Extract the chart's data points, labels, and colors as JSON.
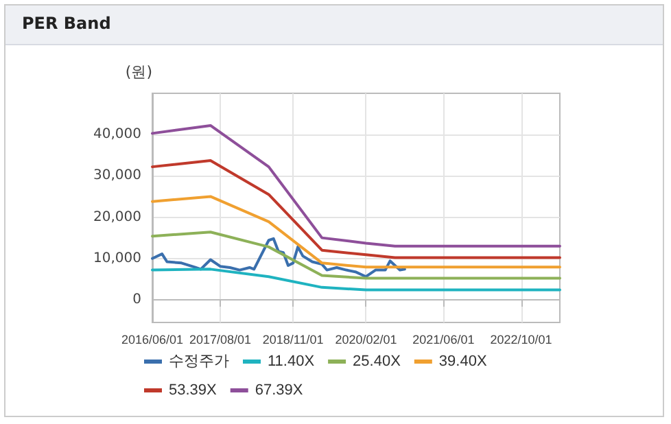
{
  "chart_data": {
    "type": "line",
    "title": "PER Band",
    "ylabel": "(원)",
    "xlim": [
      "2016-06-01",
      "2023-06-01"
    ],
    "xticks": [
      {
        "value": "2016-06-01",
        "label": "2016/06/01"
      },
      {
        "value": "2017-08-01",
        "label": "2017/08/01"
      },
      {
        "value": "2018-11-01",
        "label": "2018/11/01"
      },
      {
        "value": "2020-02-01",
        "label": "2020/02/01"
      },
      {
        "value": "2021-06-01",
        "label": "2021/06/01"
      },
      {
        "value": "2022-10-01",
        "label": "2022/10/01"
      }
    ],
    "ylim": [
      -5500,
      50000
    ],
    "yticks": [
      0,
      {
        "value": 10000,
        "label": "10,000"
      },
      {
        "value": 20000,
        "label": "20,000"
      },
      {
        "value": 30000,
        "label": "30,000"
      },
      {
        "value": 40000,
        "label": "40,000"
      }
    ],
    "grid": true,
    "legend": "bottom",
    "marker": "none",
    "line_style": "solid",
    "series": [
      {
        "name": "수정주가",
        "color": "#3a6fad",
        "x": [
          "2016-06-01",
          "2016-08-01",
          "2016-09-01",
          "2016-12-01",
          "2017-03-01",
          "2017-04-01",
          "2017-06-01",
          "2017-08-01",
          "2017-10-01",
          "2017-12-01",
          "2018-02-01",
          "2018-03-01",
          "2018-06-01",
          "2018-07-01",
          "2018-08-01",
          "2018-09-01",
          "2018-10-01",
          "2018-11-01",
          "2018-12-01",
          "2019-01-01",
          "2019-03-01",
          "2019-05-01",
          "2019-06-01",
          "2019-08-01",
          "2019-10-01",
          "2019-12-01",
          "2020-02-01",
          "2020-04-01",
          "2020-06-01",
          "2020-07-01",
          "2020-08-01",
          "2020-09-01",
          "2020-10-01"
        ],
        "values": [
          10000,
          11100,
          9200,
          8900,
          7800,
          7400,
          9700,
          8100,
          7800,
          7200,
          7800,
          7400,
          14400,
          14800,
          11700,
          11400,
          8300,
          8900,
          12800,
          10600,
          9200,
          8600,
          7200,
          7800,
          7200,
          6700,
          5600,
          7200,
          7200,
          9400,
          8300,
          7200,
          7400
        ]
      },
      {
        "name": "11.40X",
        "color": "#1fb3c0",
        "x": [
          "2016-06-01",
          "2017-06-01",
          "2018-06-01",
          "2019-05-01",
          "2020-02-01",
          "2023-06-01"
        ],
        "values": [
          7200,
          7400,
          5600,
          3000,
          2400,
          2400
        ]
      },
      {
        "name": "25.40X",
        "color": "#8db158",
        "x": [
          "2016-06-01",
          "2017-06-01",
          "2018-06-01",
          "2019-05-01",
          "2020-02-01",
          "2023-06-01"
        ],
        "values": [
          15400,
          16400,
          12800,
          5900,
          5200,
          5200
        ]
      },
      {
        "name": "39.40X",
        "color": "#f0a030",
        "x": [
          "2016-06-01",
          "2017-06-01",
          "2018-06-01",
          "2019-05-01",
          "2020-02-01",
          "2023-06-01"
        ],
        "values": [
          23800,
          25000,
          18900,
          8900,
          7900,
          7900
        ]
      },
      {
        "name": "53.39X",
        "color": "#c0392b",
        "x": [
          "2016-06-01",
          "2017-06-01",
          "2018-06-01",
          "2019-05-01",
          "2020-02-01",
          "2020-08-01",
          "2023-06-01"
        ],
        "values": [
          32200,
          33700,
          25500,
          12000,
          10900,
          10200,
          10200
        ]
      },
      {
        "name": "67.39X",
        "color": "#8e4f9a",
        "x": [
          "2016-06-01",
          "2017-06-01",
          "2018-06-01",
          "2019-05-01",
          "2020-02-01",
          "2020-08-01",
          "2023-06-01"
        ],
        "values": [
          40300,
          42200,
          32200,
          15000,
          13700,
          13000,
          13000
        ]
      }
    ]
  }
}
